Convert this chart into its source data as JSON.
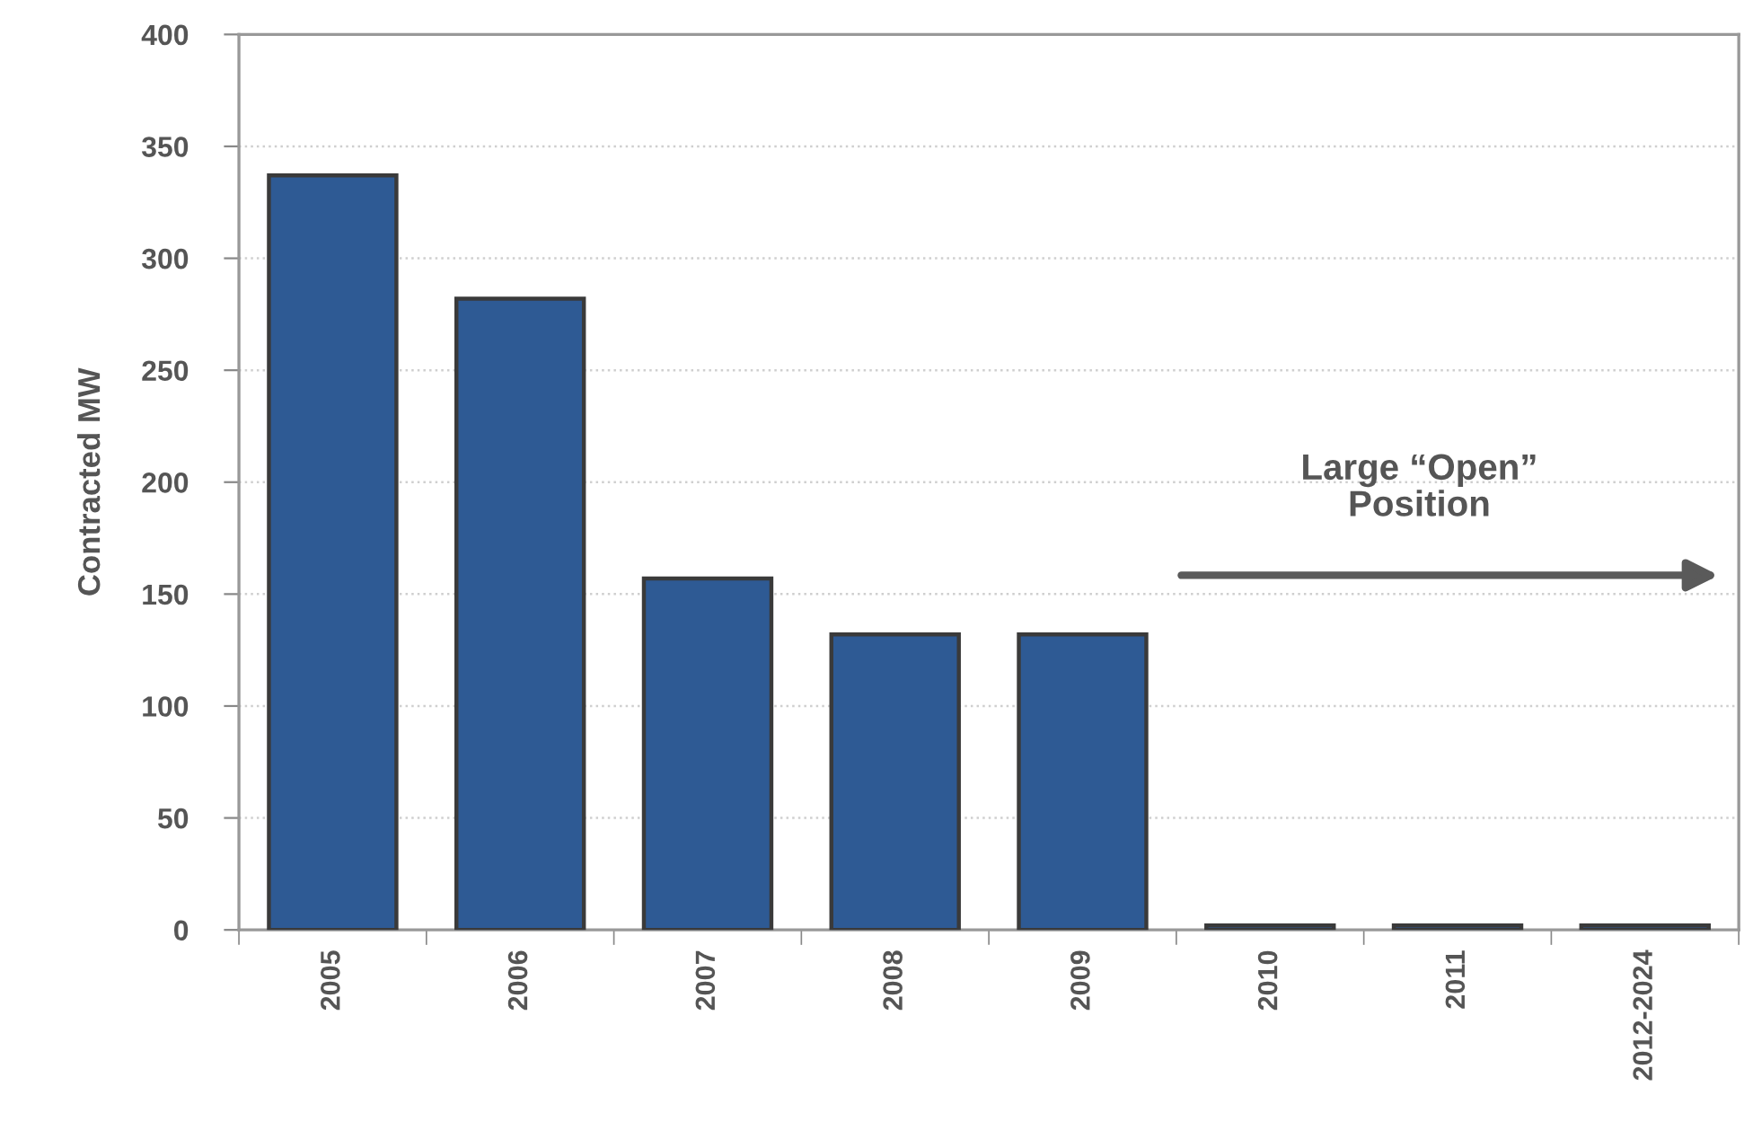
{
  "chart_data": {
    "type": "bar",
    "ylabel": "Contracted MW",
    "categories": [
      "2005",
      "2006",
      "2007",
      "2008",
      "2009",
      "2010",
      "2011",
      "2012-2024"
    ],
    "values": [
      337,
      282,
      157,
      132,
      132,
      2,
      2,
      2
    ],
    "color": "#2e5a94",
    "ylim": [
      0,
      400
    ],
    "yticks": [
      0,
      50,
      100,
      150,
      200,
      250,
      300,
      350,
      400
    ],
    "grid": "y",
    "annotations": [
      "Large “Open”\nPosition"
    ]
  }
}
